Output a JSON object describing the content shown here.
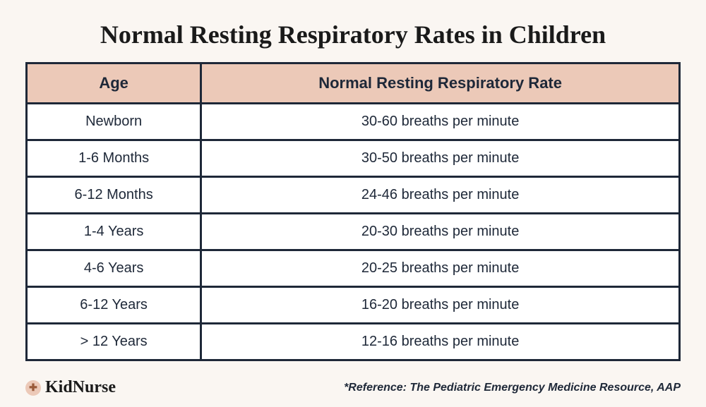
{
  "title": "Normal Resting Respiratory Rates in Children",
  "table": {
    "columns": [
      "Age",
      "Normal Resting Respiratory Rate"
    ],
    "rows": [
      [
        "Newborn",
        "30-60 breaths per minute"
      ],
      [
        "1-6 Months",
        "30-50 breaths per minute"
      ],
      [
        "6-12 Months",
        "24-46 breaths per minute"
      ],
      [
        "1-4 Years",
        "20-30 breaths per minute"
      ],
      [
        "4-6 Years",
        "20-25 breaths per minute"
      ],
      [
        "6-12 Years",
        "16-20 breaths per minute"
      ],
      [
        "> 12 Years",
        "12-16 breaths per minute"
      ]
    ],
    "header_bg": "#ecc9b8",
    "border_color": "#1e2838",
    "cell_bg": "#ffffff",
    "header_fontsize": 22,
    "cell_fontsize": 20,
    "border_width": 3
  },
  "brand": {
    "icon_glyph": "✚",
    "name": "KidNurse"
  },
  "reference": "*Reference: The Pediatric Emergency Medicine Resource, AAP",
  "colors": {
    "page_bg": "#faf6f2",
    "text_primary": "#1e2838",
    "title_color": "#1a1a1a"
  },
  "typography": {
    "title_fontsize": 36,
    "brand_fontsize": 24,
    "reference_fontsize": 16
  }
}
